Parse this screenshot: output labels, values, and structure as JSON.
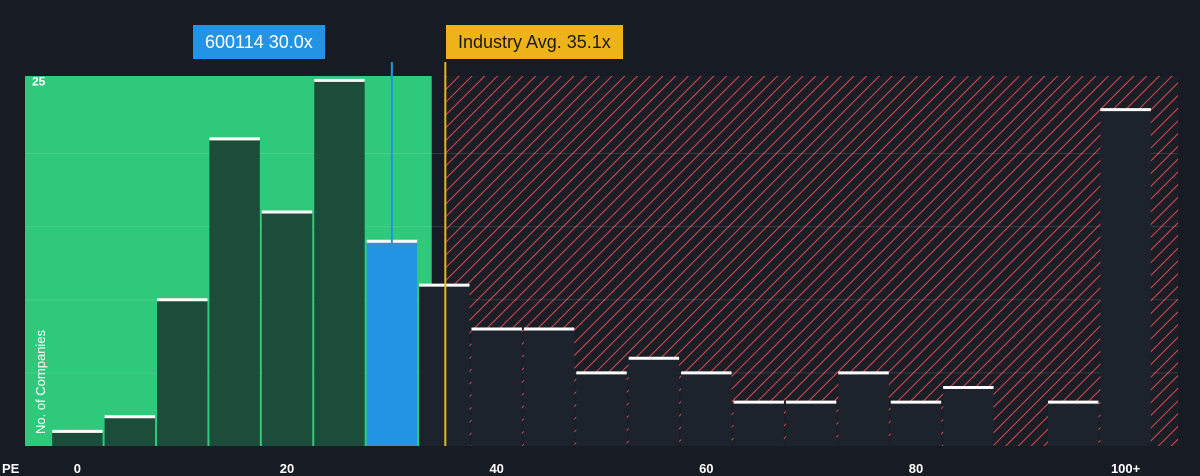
{
  "chart_data": {
    "type": "bar",
    "xlabel": "PE",
    "ylabel": "No. of Companies",
    "x_ticks": [
      "0",
      "20",
      "40",
      "60",
      "80",
      "100+"
    ],
    "y_ticks": [
      "25"
    ],
    "xlim": [
      -5,
      105
    ],
    "ylim": [
      0,
      25.3
    ],
    "bin_width": 5,
    "bins": [
      {
        "x": 0,
        "count": 1
      },
      {
        "x": 5,
        "count": 2
      },
      {
        "x": 10,
        "count": 10
      },
      {
        "x": 15,
        "count": 21
      },
      {
        "x": 20,
        "count": 16
      },
      {
        "x": 25,
        "count": 25
      },
      {
        "x": 30,
        "count": 14
      },
      {
        "x": 35,
        "count": 11
      },
      {
        "x": 40,
        "count": 8
      },
      {
        "x": 45,
        "count": 8
      },
      {
        "x": 50,
        "count": 5
      },
      {
        "x": 55,
        "count": 6
      },
      {
        "x": 60,
        "count": 5
      },
      {
        "x": 65,
        "count": 3
      },
      {
        "x": 70,
        "count": 3
      },
      {
        "x": 75,
        "count": 5
      },
      {
        "x": 80,
        "count": 3
      },
      {
        "x": 85,
        "count": 4
      },
      {
        "x": 95,
        "count": 3
      },
      {
        "x": 100,
        "count": 23
      }
    ],
    "highlight_bin_x": 30,
    "company": {
      "label": "600114 30.0x",
      "value": 30.0
    },
    "industry": {
      "label": "Industry Avg. 35.1x",
      "value": 35.1
    },
    "colors": {
      "background": "#161b24",
      "fair_zone": "#2fc97c",
      "overvalued_zone": "#e0494f",
      "bar_in_fair": "#1b4d3a",
      "bar_in_overvalued": "#1d232d",
      "highlight_bar": "#2394e3",
      "company_line": "#2394e3",
      "industry_line": "#eeb319",
      "bar_cap": "#ffffff"
    }
  }
}
